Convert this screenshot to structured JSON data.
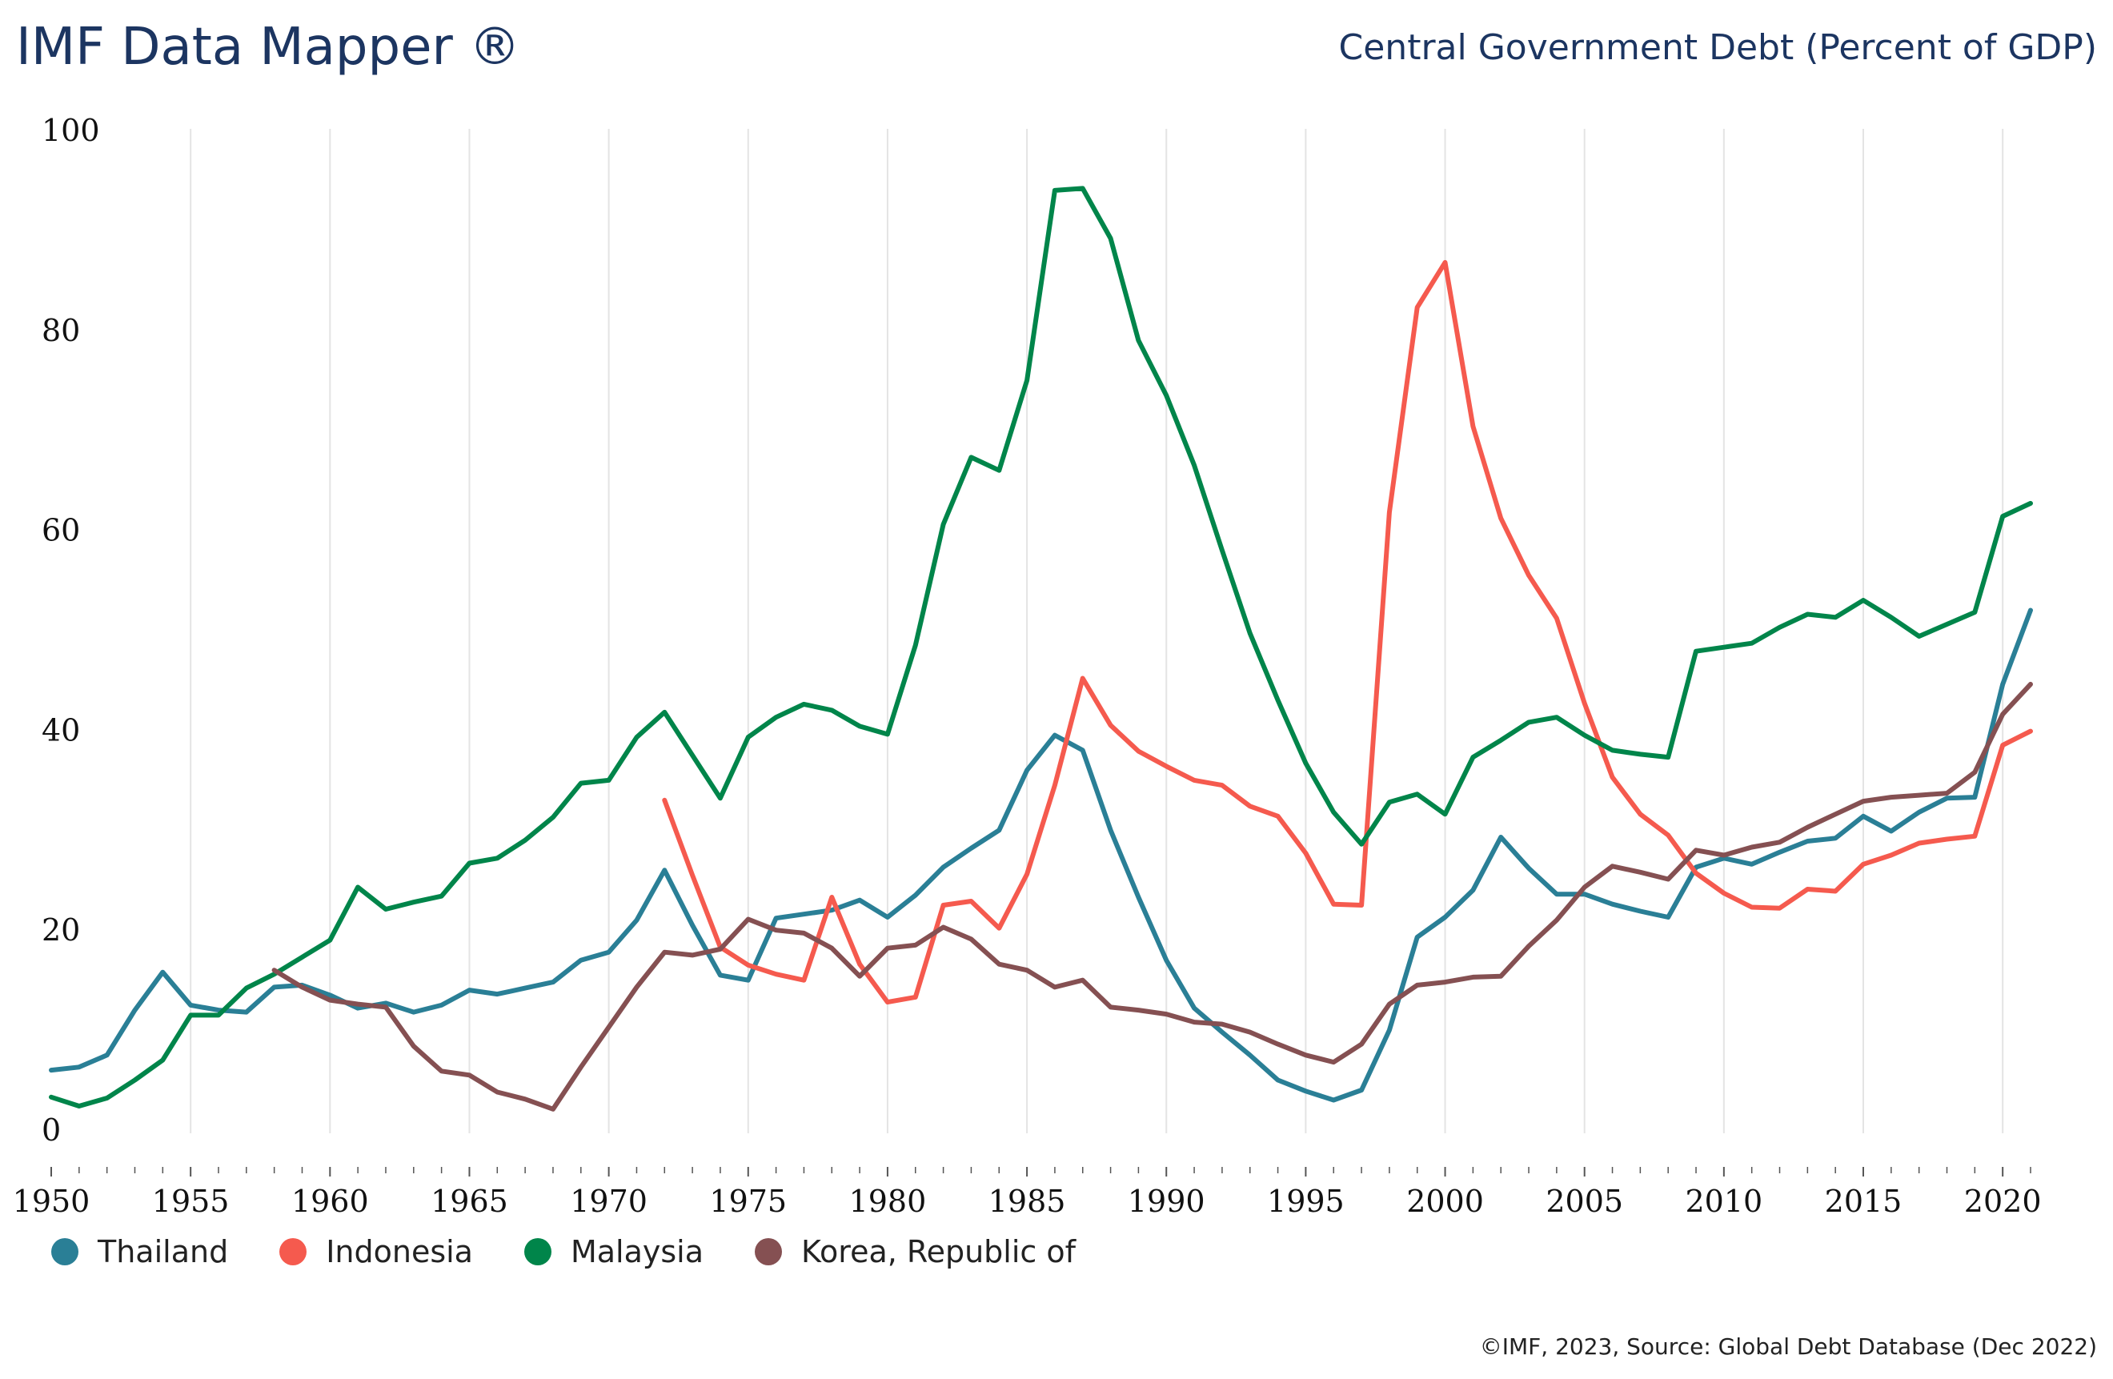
{
  "header": {
    "brand": "IMF Data Mapper ®",
    "title": "Central Government Debt (Percent of GDP)"
  },
  "footer": {
    "credit": "©IMF, 2023, Source: Global Debt Database (Dec 2022)"
  },
  "chart_data": {
    "type": "line",
    "title": "Central Government Debt (Percent of GDP)",
    "xlabel": "",
    "ylabel": "",
    "xlim": [
      1950,
      2021
    ],
    "ylim": [
      0,
      100
    ],
    "x_ticks": [
      1950,
      1955,
      1960,
      1965,
      1970,
      1975,
      1980,
      1985,
      1990,
      1995,
      2000,
      2005,
      2010,
      2015,
      2020
    ],
    "y_ticks": [
      0,
      20,
      40,
      60,
      80,
      100
    ],
    "grid": "vertical",
    "legend_position": "bottom-left",
    "series": [
      {
        "name": "Thailand",
        "color": "#2a7f96",
        "start_year": 1950,
        "values": [
          6,
          6.3,
          7.5,
          12,
          15.8,
          12.5,
          12,
          11.8,
          14.3,
          14.5,
          13.5,
          12.2,
          12.7,
          11.8,
          12.5,
          14,
          13.6,
          14.2,
          14.8,
          17,
          17.8,
          21,
          26,
          20.5,
          15.5,
          15,
          21.2,
          21.6,
          22,
          23,
          21.3,
          23.5,
          26.3,
          28.2,
          30,
          36,
          39.5,
          38,
          30,
          23.3,
          17,
          12.2,
          9.8,
          7.5,
          5,
          3.9,
          3,
          4,
          10,
          19.3,
          21.3,
          24,
          29.3,
          26.2,
          23.6,
          23.6,
          22.6,
          21.9,
          21.3,
          26.3,
          27.2,
          26.6,
          27.8,
          28.9,
          29.2,
          31.4,
          29.9,
          31.8,
          33.2,
          33.3,
          44.6,
          52
        ]
      },
      {
        "name": "Indonesia",
        "color": "#f55a4e",
        "start_year": 1972,
        "values": [
          33,
          25.5,
          18.3,
          16.5,
          15.6,
          15,
          23.3,
          16.6,
          12.8,
          13.3,
          22.5,
          22.9,
          20.2,
          25.6,
          34.5,
          45.2,
          40.5,
          37.9,
          36.4,
          35,
          34.5,
          32.4,
          31.4,
          27.7,
          22.6,
          22.5,
          61.8,
          82.3,
          86.8,
          70.4,
          61.2,
          55.5,
          51.2,
          42.7,
          35.3,
          31.6,
          29.5,
          25.7,
          23.7,
          22.3,
          22.2,
          24.1,
          23.9,
          26.6,
          27.5,
          28.7,
          29.1,
          29.4,
          38.5,
          39.9
        ]
      },
      {
        "name": "Malaysia",
        "color": "#00854a",
        "start_year": 1950,
        "values": [
          3.3,
          2.4,
          3.2,
          5,
          7,
          11.5,
          11.5,
          14.2,
          15.6,
          17.3,
          19,
          24.3,
          22.1,
          22.8,
          23.4,
          26.7,
          27.2,
          29,
          31.3,
          34.7,
          35,
          39.3,
          41.8,
          37.5,
          33.2,
          39.3,
          41.3,
          42.6,
          42,
          40.4,
          39.6,
          48.5,
          60.6,
          67.3,
          66,
          75,
          94,
          94.2,
          89.2,
          79,
          73.5,
          66.5,
          58,
          49.7,
          43,
          36.7,
          31.8,
          28.6,
          32.8,
          33.6,
          31.6,
          37.3,
          39,
          40.8,
          41.3,
          39.5,
          38,
          37.6,
          37.3,
          47.9,
          48.3,
          48.7,
          50.3,
          51.6,
          51.3,
          53,
          51.3,
          49.4,
          50.6,
          51.8,
          61.4,
          62.7
        ]
      },
      {
        "name": "Korea, Republic of",
        "color": "#855052",
        "start_year": 1958,
        "values": [
          16,
          14.3,
          13,
          12.6,
          12.3,
          8.4,
          5.9,
          5.5,
          3.8,
          3.1,
          2.1,
          6.3,
          10.3,
          14.3,
          17.8,
          17.5,
          18.1,
          21.1,
          20,
          19.7,
          18.2,
          15.4,
          18.2,
          18.5,
          20.3,
          19.1,
          16.6,
          16,
          14.3,
          15,
          12.3,
          12,
          11.6,
          10.8,
          10.6,
          9.8,
          8.6,
          7.5,
          6.8,
          8.6,
          12.6,
          14.5,
          14.8,
          15.3,
          15.4,
          18.4,
          21,
          24.3,
          26.4,
          25.8,
          25.1,
          28,
          27.5,
          28.3,
          28.8,
          30.3,
          31.6,
          32.9,
          33.3,
          33.5,
          33.7,
          35.8,
          41.6,
          44.6
        ]
      }
    ]
  }
}
